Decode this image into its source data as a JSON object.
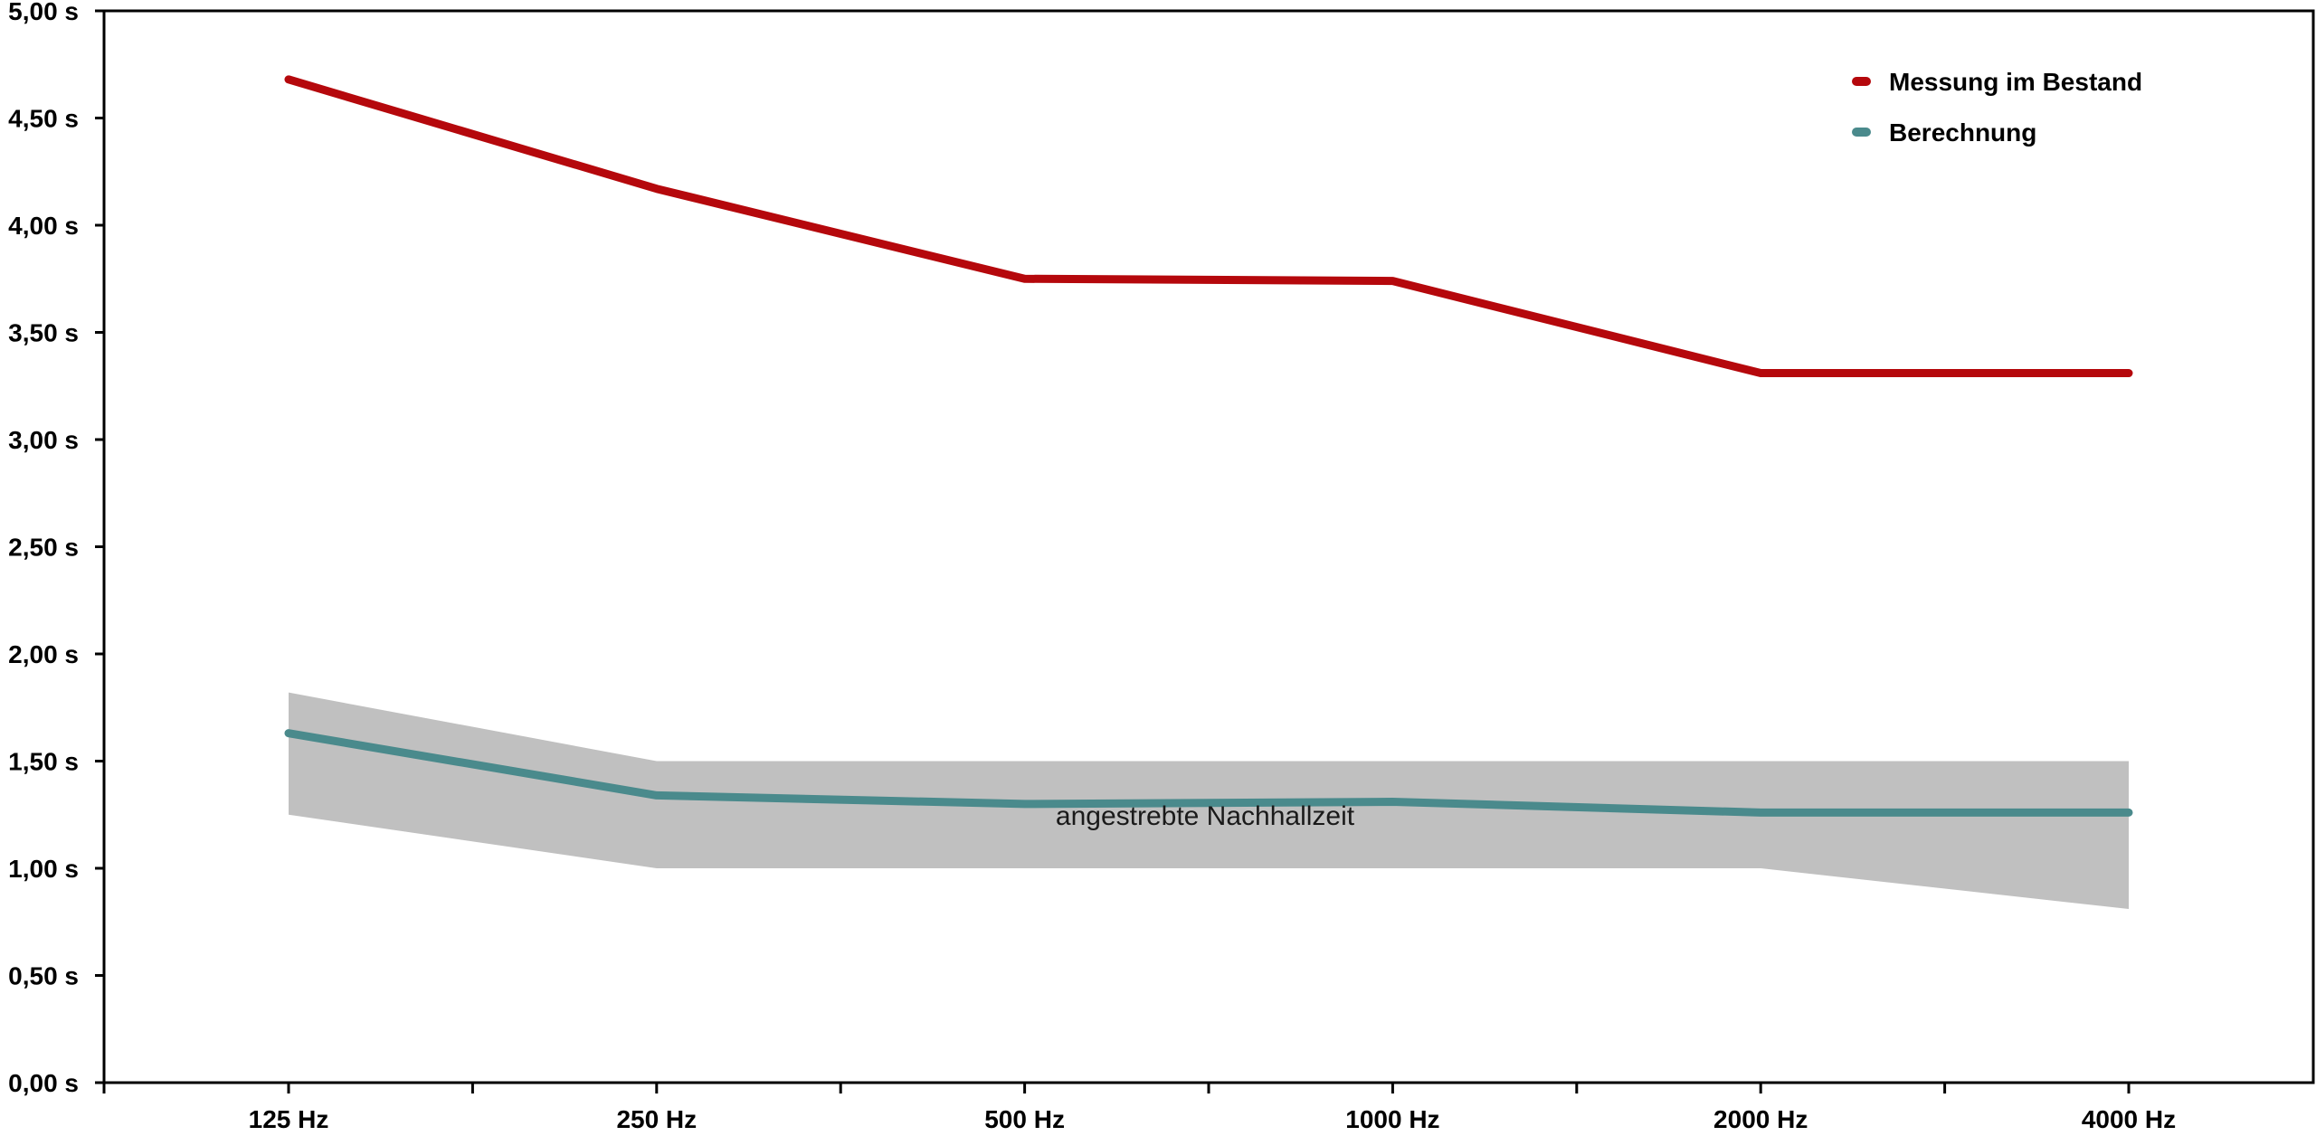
{
  "chart_data": {
    "type": "line",
    "categories": [
      "125 Hz",
      "250 Hz",
      "500 Hz",
      "1000 Hz",
      "2000 Hz",
      "4000 Hz"
    ],
    "y_tick_labels": [
      "0,00 s",
      "0,50 s",
      "1,00 s",
      "1,50 s",
      "2,00 s",
      "2,50 s",
      "3,00 s",
      "3,50 s",
      "4,00 s",
      "4,50 s",
      "5,00 s"
    ],
    "y_ticks": [
      0,
      0.5,
      1.0,
      1.5,
      2.0,
      2.5,
      3.0,
      3.5,
      4.0,
      4.5,
      5.0
    ],
    "ylim": [
      0,
      5
    ],
    "grid": false,
    "legend_position": "top-right",
    "series": [
      {
        "name": "Messung im Bestand",
        "color": "#b5080c",
        "values": [
          4.68,
          4.17,
          3.75,
          3.74,
          3.31,
          3.31
        ]
      },
      {
        "name": "Berechnung",
        "color": "#4a8a8c",
        "values": [
          1.63,
          1.34,
          1.3,
          1.31,
          1.26,
          1.26
        ]
      }
    ],
    "target_band": {
      "label": "angestrebte Nachhallzeit",
      "color": "#c0c0c0",
      "upper": [
        1.82,
        1.5,
        1.5,
        1.5,
        1.5,
        1.5
      ],
      "lower": [
        1.25,
        1.0,
        1.0,
        1.0,
        1.0,
        0.81
      ]
    }
  }
}
